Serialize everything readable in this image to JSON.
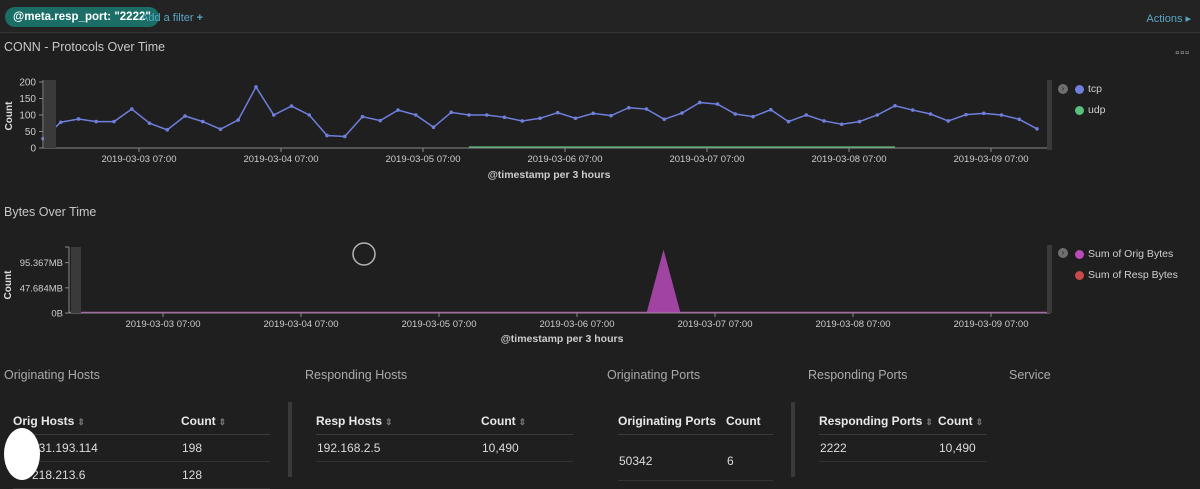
{
  "topbar": {
    "filter_pill": "@meta.resp_port: \"2222\"",
    "add_filter": "Add a filter",
    "add_filter_icon": "+",
    "actions": "Actions",
    "actions_icon": "▸"
  },
  "panel_menu_icon": "▫▫▫",
  "chart1": {
    "title": "CONN - Protocols Over Time",
    "chart_data": {
      "type": "line",
      "xlabel": "@timestamp per 3 hours",
      "ylabel": "Count",
      "ylim": [
        0,
        200
      ],
      "y_ticks": [
        "0",
        "50",
        "100",
        "150",
        "200"
      ],
      "x_ticks": [
        "2019-03-03 07:00",
        "2019-03-04 07:00",
        "2019-03-05 07:00",
        "2019-03-06 07:00",
        "2019-03-07 07:00",
        "2019-03-08 07:00",
        "2019-03-09 07:00"
      ],
      "series": [
        {
          "name": "tcp",
          "color": "#6f7fdd",
          "values": [
            28,
            78,
            88,
            80,
            80,
            118,
            75,
            55,
            97,
            80,
            57,
            85,
            185,
            100,
            127,
            100,
            38,
            35,
            95,
            83,
            115,
            100,
            63,
            108,
            100,
            100,
            93,
            82,
            90,
            107,
            90,
            105,
            98,
            122,
            118,
            87,
            106,
            138,
            133,
            103,
            95,
            116,
            80,
            100,
            82,
            72,
            80,
            100,
            128,
            115,
            103,
            82,
            101,
            105,
            100,
            87,
            58
          ]
        },
        {
          "name": "udp",
          "color": "#57c17b",
          "values": [
            0,
            0,
            0,
            0,
            0,
            0,
            0,
            0,
            0,
            0,
            0,
            0,
            0,
            0,
            0,
            0,
            0,
            0,
            0,
            0,
            0,
            0,
            0,
            0,
            2,
            2,
            2,
            2,
            2,
            2,
            2,
            2,
            2,
            2,
            2,
            2,
            2,
            2,
            2,
            2,
            2,
            2,
            2,
            2,
            2,
            2,
            2,
            2,
            2,
            0,
            0,
            0,
            0,
            0,
            0,
            0,
            0
          ]
        }
      ]
    }
  },
  "chart2": {
    "title": "Bytes Over Time",
    "chart_data": {
      "type": "area",
      "xlabel": "@timestamp per 3 hours",
      "ylabel": "Count",
      "y_ticks": [
        "0B",
        "47.684MB",
        "95.367MB"
      ],
      "y_tick_values": [
        0,
        47.684,
        95.367
      ],
      "ylim": [
        0,
        125
      ],
      "x_ticks": [
        "2019-03-03 07:00",
        "2019-03-04 07:00",
        "2019-03-05 07:00",
        "2019-03-06 07:00",
        "2019-03-07 07:00",
        "2019-03-08 07:00",
        "2019-03-09 07:00"
      ],
      "series": [
        {
          "name": "Sum of Orig Bytes",
          "color": "#b94ab9",
          "values": [
            0,
            0,
            0,
            0,
            0,
            0,
            0,
            0,
            0,
            0,
            0,
            0,
            0,
            0,
            0,
            0,
            0,
            0,
            0,
            0,
            0,
            0,
            0,
            0,
            0,
            0,
            0,
            0,
            0,
            0,
            0,
            0,
            0,
            0,
            0,
            0,
            0,
            0,
            0,
            0,
            0,
            0,
            0,
            0,
            0,
            0,
            0,
            0,
            0,
            0,
            0,
            0,
            0,
            0,
            0,
            0,
            0
          ],
          "spike": {
            "index": 30,
            "value": 120
          }
        },
        {
          "name": "Sum of Resp Bytes",
          "color": "#c94a4a",
          "values": [
            0
          ]
        }
      ]
    }
  },
  "sections": {
    "orig_hosts": "Originating Hosts",
    "resp_hosts": "Responding Hosts",
    "orig_ports": "Originating Ports",
    "resp_ports": "Responding Ports",
    "service": "Service"
  },
  "tables": {
    "orig_hosts": {
      "headers": [
        "Orig Hosts",
        "Count"
      ],
      "rows": [
        [
          "231.193.114",
          "198"
        ],
        [
          "218.213.6",
          "128"
        ]
      ]
    },
    "resp_hosts": {
      "headers": [
        "Resp Hosts",
        "Count"
      ],
      "rows": [
        [
          "192.168.2.5",
          "10,490"
        ]
      ]
    },
    "orig_ports": {
      "headers": [
        "Originating Ports",
        "Count"
      ],
      "rows": [
        [
          "50342",
          "6"
        ]
      ]
    },
    "resp_ports": {
      "headers": [
        "Responding Ports",
        "Count"
      ],
      "rows": [
        [
          "2222",
          "10,490"
        ]
      ]
    }
  },
  "sort_icon": "⇕"
}
